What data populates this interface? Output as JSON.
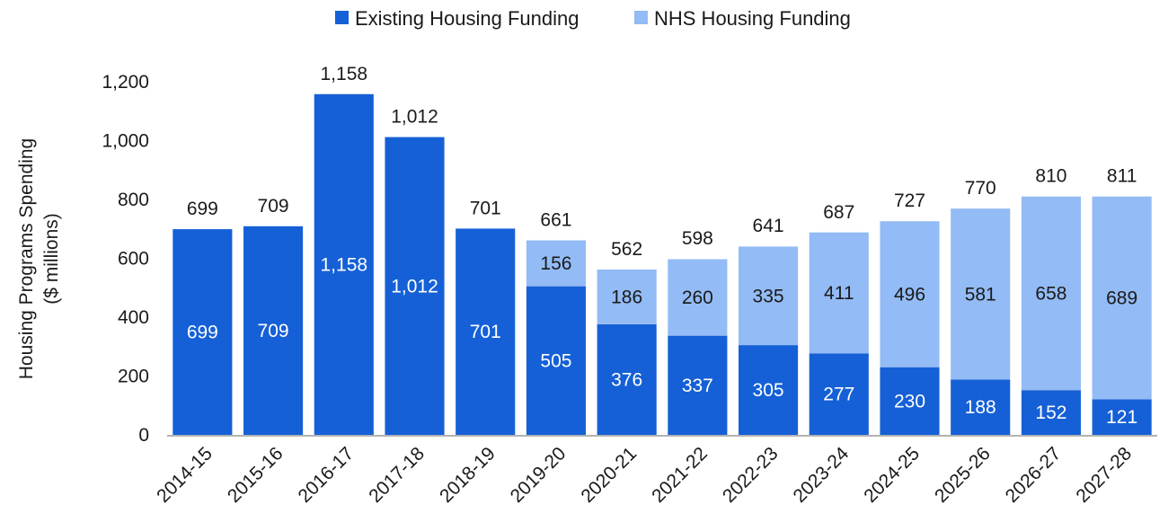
{
  "chart_data": {
    "type": "bar",
    "stacked": true,
    "title": "",
    "xlabel": "",
    "ylabel": [
      "Housing Programs Spending",
      "($ millions)"
    ],
    "ylim": [
      0,
      1200
    ],
    "yticks": [
      0,
      200,
      400,
      600,
      800,
      1000,
      1200
    ],
    "ytick_labels": [
      "0",
      "200",
      "400",
      "600",
      "800",
      "1,000",
      "1,200"
    ],
    "grid": false,
    "legend_position": "top-center",
    "categories": [
      "2014-15",
      "2015-16",
      "2016-17",
      "2017-18",
      "2018-19",
      "2019-20",
      "2020-21",
      "2021-22",
      "2022-23",
      "2023-24",
      "2024-25",
      "2025-26",
      "2026-27",
      "2027-28"
    ],
    "series": [
      {
        "name": "Existing Housing Funding",
        "color": "#1560d6",
        "label_color": "#ffffff",
        "values": [
          699,
          709,
          1158,
          1012,
          701,
          505,
          376,
          337,
          305,
          277,
          230,
          188,
          152,
          121
        ],
        "labels": [
          "699",
          "709",
          "1,158",
          "1,012",
          "701",
          "505",
          "376",
          "337",
          "305",
          "277",
          "230",
          "188",
          "152",
          "121"
        ]
      },
      {
        "name": "NHS Housing Funding",
        "color": "#93bbf5",
        "label_color": "#1a1a1a",
        "values": [
          0,
          0,
          0,
          0,
          0,
          156,
          186,
          260,
          335,
          411,
          496,
          581,
          658,
          689
        ],
        "labels": [
          "",
          "",
          "",
          "",
          "",
          "156",
          "186",
          "260",
          "335",
          "411",
          "496",
          "581",
          "658",
          "689"
        ]
      }
    ],
    "totals": [
      699,
      709,
      1158,
      1012,
      701,
      661,
      562,
      598,
      641,
      687,
      727,
      770,
      810,
      811
    ],
    "total_labels": [
      "699",
      "709",
      "1,158",
      "1,012",
      "701",
      "661",
      "562",
      "598",
      "641",
      "687",
      "727",
      "770",
      "810",
      "811"
    ]
  },
  "legend": [
    {
      "label": "Existing Housing Funding",
      "color": "#1560d6"
    },
    {
      "label": "NHS Housing Funding",
      "color": "#93bbf5"
    }
  ]
}
